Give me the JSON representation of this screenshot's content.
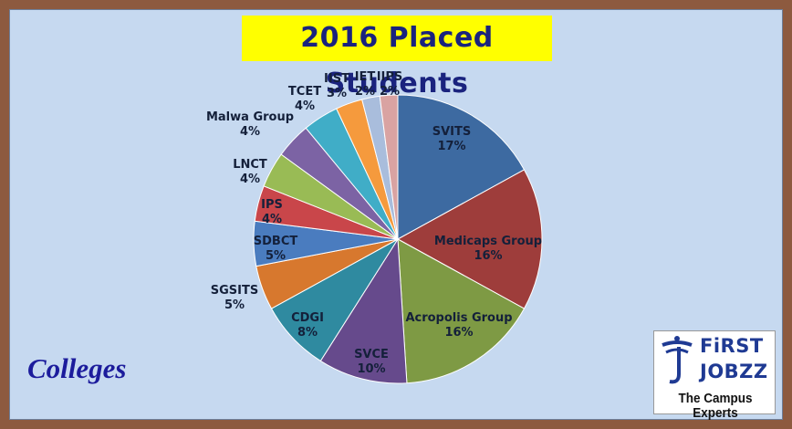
{
  "title": "2016 Placed Students",
  "caption": "Colleges",
  "logo": {
    "line1": "FiRST",
    "line2": "JOBZZ",
    "tagline": "The Campus Experts"
  },
  "chart_data": {
    "type": "pie",
    "title": "2016 Placed Students",
    "slices": [
      {
        "label": "SVITS",
        "value": 17,
        "display": "17%",
        "color": "#3d6aa1"
      },
      {
        "label": "Medicaps Group",
        "value": 16,
        "display": "16%",
        "color": "#9e3d3b"
      },
      {
        "label": "Acropolis Group",
        "value": 16,
        "display": "16%",
        "color": "#7e9a44"
      },
      {
        "label": "SVCE",
        "value": 10,
        "display": "10%",
        "color": "#664a8c"
      },
      {
        "label": "CDGI",
        "value": 8,
        "display": "8%",
        "color": "#2f8aa0"
      },
      {
        "label": "SGSITS",
        "value": 5,
        "display": "5%",
        "color": "#d7782e"
      },
      {
        "label": "SDBCT",
        "value": 5,
        "display": "5%",
        "color": "#4a7cbf"
      },
      {
        "label": "IPS",
        "value": 4,
        "display": "4%",
        "color": "#c9464a"
      },
      {
        "label": "LNCT",
        "value": 4,
        "display": "4%",
        "color": "#99bb55"
      },
      {
        "label": "Malwa Group",
        "value": 4,
        "display": "4%",
        "color": "#7c63a4"
      },
      {
        "label": "TCET",
        "value": 4,
        "display": "4%",
        "color": "#40adc7"
      },
      {
        "label": "IIST",
        "value": 3,
        "display": "3%",
        "color": "#f59a3d"
      },
      {
        "label": "IET",
        "value": 2,
        "display": "2%",
        "color": "#a9bddc"
      },
      {
        "label": "IIPS",
        "value": 2,
        "display": "2%",
        "color": "#d9a3a2"
      }
    ]
  }
}
